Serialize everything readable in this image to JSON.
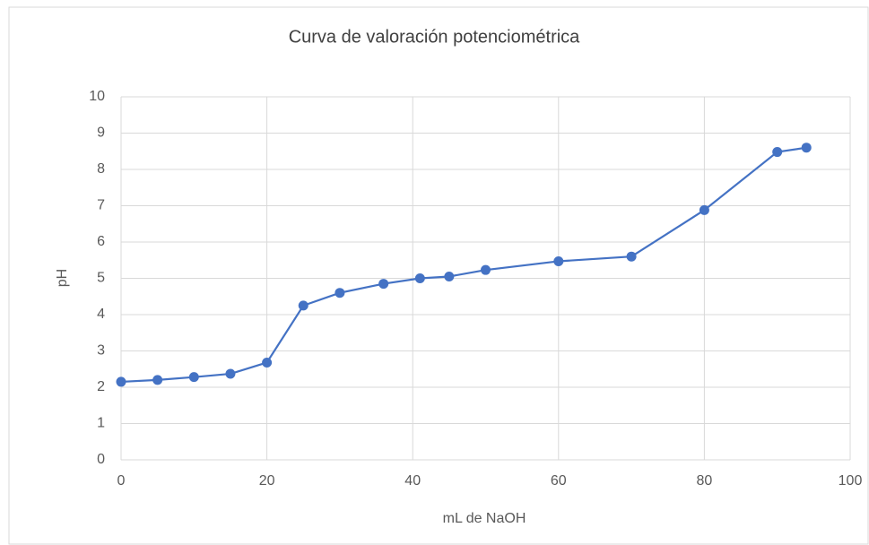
{
  "chart_data": {
    "type": "line",
    "title": "Curva de valoración potenciométrica",
    "x_label": "mL de NaOH",
    "y_label": "pH",
    "x": [
      0,
      5,
      10,
      15,
      20,
      25,
      30,
      36,
      41,
      45,
      50,
      60,
      70,
      80,
      90,
      94
    ],
    "series": [
      {
        "name": "pH",
        "color": "#4472c4",
        "values": [
          2.15,
          2.2,
          2.28,
          2.37,
          2.68,
          4.25,
          4.6,
          4.85,
          5.0,
          5.05,
          5.23,
          5.47,
          5.6,
          6.88,
          8.48,
          8.6
        ]
      }
    ],
    "xlim": [
      0,
      100
    ],
    "xticks": [
      0,
      20,
      40,
      60,
      80,
      100
    ],
    "ylim": [
      0,
      10
    ],
    "yticks": [
      0,
      1,
      2,
      3,
      4,
      5,
      6,
      7,
      8,
      9,
      10
    ],
    "grid": true
  }
}
